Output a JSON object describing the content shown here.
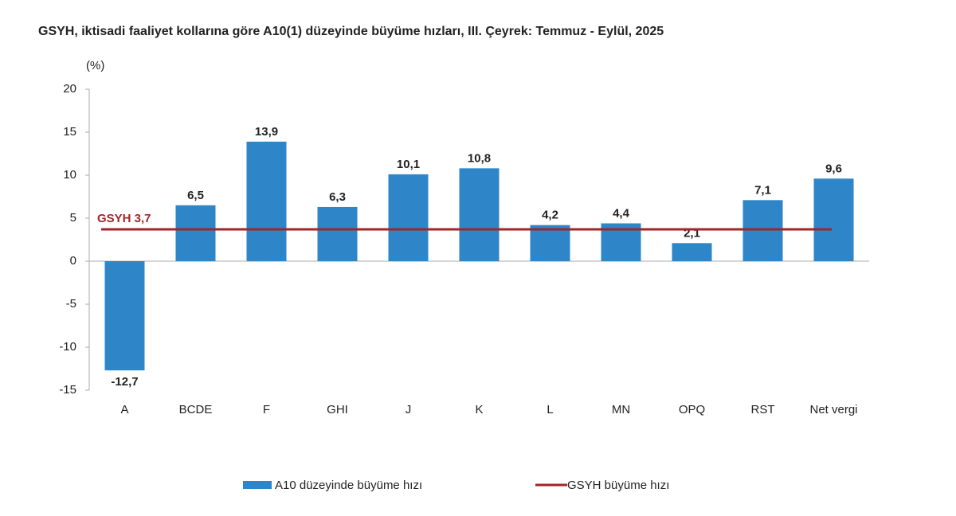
{
  "chart_data": {
    "type": "bar",
    "title": "GSYH, iktisadi faaliyet kollarına göre A10(1) düzeyinde büyüme hızları, III. Çeyrek: Temmuz - Eylül, 2025",
    "y_label": "(%)",
    "categories": [
      "A",
      "BCDE",
      "F",
      "GHI",
      "J",
      "K",
      "L",
      "MN",
      "OPQ",
      "RST",
      "Net vergi"
    ],
    "series": [
      {
        "name": "A10 düzeyinde büyüme hızı",
        "color": "#2e86c8",
        "values": [
          -12.7,
          6.5,
          13.9,
          6.3,
          10.1,
          10.8,
          4.2,
          4.4,
          2.1,
          7.1,
          9.6
        ],
        "value_labels": [
          "-12,7",
          "6,5",
          "13,9",
          "6,3",
          "10,1",
          "10,8",
          "4,2",
          "4,4",
          "2,1",
          "7,1",
          "9,6"
        ]
      },
      {
        "name": "GSYH büyüme hızı",
        "color": "#a0262a",
        "type": "hline",
        "value": 3.7,
        "label": "GSYH 3,7"
      }
    ],
    "ylim": [
      -15,
      20
    ],
    "yticks": [
      -15,
      -10,
      -5,
      0,
      5,
      10,
      15,
      20
    ]
  }
}
